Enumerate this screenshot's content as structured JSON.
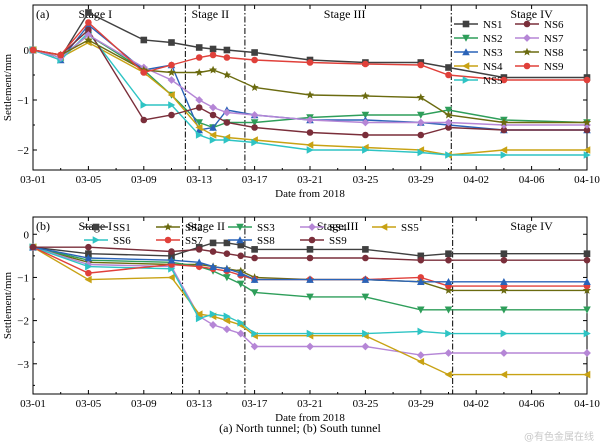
{
  "caption": "(a) North tunnel; (b) South tunnel",
  "watermark": "@有色金属在线",
  "chart_data": [
    {
      "type": "line",
      "panel_label": "(a)",
      "xlabel": "Date from 2018",
      "ylabel": "Settlement/mm",
      "x_ticks": [
        "03-01",
        "03-05",
        "03-09",
        "03-13",
        "03-17",
        "03-21",
        "03-25",
        "03-29",
        "04-02",
        "04-06",
        "04-10"
      ],
      "x_range": [
        0,
        40
      ],
      "ylim": [
        -2.4,
        0.9
      ],
      "y_ticks": [
        0,
        -1,
        -2
      ],
      "stage_lines_x": [
        11,
        15.3,
        30.2
      ],
      "stages": [
        {
          "label": "Stage I",
          "x": 4.5
        },
        {
          "label": "Stage II",
          "x": 12.8
        },
        {
          "label": "Stage III",
          "x": 22.5
        },
        {
          "label": "Stage IV",
          "x": 36
        }
      ],
      "legend_position": "top-right",
      "legend_cols": 2,
      "x": [
        0,
        2,
        4,
        8,
        10,
        12,
        13,
        14,
        16,
        20,
        24,
        28,
        30,
        34,
        40
      ],
      "series": [
        {
          "name": "NS1",
          "color": "#404040",
          "marker": "square",
          "values": [
            0,
            -0.15,
            0.75,
            0.2,
            0.15,
            0.05,
            0.02,
            0,
            -0.05,
            -0.2,
            -0.25,
            -0.25,
            -0.35,
            -0.55,
            -0.55
          ]
        },
        {
          "name": "NS2",
          "color": "#2e9e5a",
          "marker": "tri-down",
          "values": [
            0,
            -0.15,
            0.3,
            -0.4,
            -0.9,
            -1.45,
            -1.55,
            -1.45,
            -1.45,
            -1.35,
            -1.3,
            -1.3,
            -1.2,
            -1.4,
            -1.45
          ]
        },
        {
          "name": "NS3",
          "color": "#2a63b8",
          "marker": "tri-up",
          "values": [
            0,
            -0.2,
            0.5,
            -0.4,
            -0.3,
            -1.6,
            -1.55,
            -1.2,
            -1.3,
            -1.4,
            -1.4,
            -1.45,
            -1.5,
            -1.6,
            -1.6
          ]
        },
        {
          "name": "NS4",
          "color": "#c8a214",
          "marker": "tri-left",
          "values": [
            0,
            -0.15,
            0.15,
            -0.45,
            -0.9,
            -1.55,
            -1.7,
            -1.75,
            -1.8,
            -1.9,
            -1.95,
            -2.0,
            -2.1,
            -2.0,
            -2.0
          ]
        },
        {
          "name": "NS5",
          "color": "#2ec4c4",
          "marker": "tri-right",
          "values": [
            0,
            -0.2,
            0.35,
            -1.1,
            -1.1,
            -1.7,
            -1.8,
            -1.8,
            -1.85,
            -2.0,
            -2.0,
            -2.05,
            -2.1,
            -2.1,
            -2.1
          ]
        },
        {
          "name": "NS6",
          "color": "#7a2e3a",
          "marker": "circle",
          "values": [
            0,
            -0.1,
            0.4,
            -1.4,
            -1.3,
            -1.15,
            -1.3,
            -1.45,
            -1.55,
            -1.65,
            -1.7,
            -1.7,
            -1.55,
            -1.6,
            -1.6
          ]
        },
        {
          "name": "NS7",
          "color": "#b586d6",
          "marker": "diamond",
          "values": [
            0,
            -0.15,
            0.3,
            -0.35,
            -0.6,
            -1.0,
            -1.15,
            -1.25,
            -1.3,
            -1.4,
            -1.45,
            -1.45,
            -1.45,
            -1.5,
            -1.5
          ]
        },
        {
          "name": "NS8",
          "color": "#6b6b10",
          "marker": "star",
          "values": [
            0,
            -0.1,
            0.2,
            -0.4,
            -0.45,
            -0.45,
            -0.4,
            -0.5,
            -0.75,
            -0.9,
            -0.92,
            -0.95,
            -1.3,
            -1.45,
            -1.45
          ]
        },
        {
          "name": "NS9",
          "color": "#e0403a",
          "marker": "circle",
          "values": [
            0,
            -0.1,
            0.55,
            -0.45,
            -0.3,
            -0.15,
            -0.1,
            -0.15,
            -0.2,
            -0.25,
            -0.28,
            -0.3,
            -0.5,
            -0.6,
            -0.6
          ]
        }
      ]
    },
    {
      "type": "line",
      "panel_label": "(b)",
      "xlabel": "Date from 2018",
      "ylabel": "Settlement/mm",
      "x_ticks": [
        "03-01",
        "03-05",
        "03-09",
        "03-13",
        "03-17",
        "03-21",
        "03-25",
        "03-29",
        "04-02",
        "04-06",
        "04-10"
      ],
      "x_range": [
        0,
        40
      ],
      "ylim": [
        -3.7,
        0.4
      ],
      "y_ticks": [
        0,
        -1,
        -2,
        -3
      ],
      "stage_lines_x": [
        10.8,
        15.3,
        30.3
      ],
      "stages": [
        {
          "label": "Stage I",
          "x": 4.5
        },
        {
          "label": "Stage II",
          "x": 12.5
        },
        {
          "label": "Stage III",
          "x": 22
        },
        {
          "label": "Stage IV",
          "x": 36
        }
      ],
      "legend_position": "top",
      "legend_cols": 5,
      "x": [
        0,
        4,
        10,
        12,
        13,
        14,
        15,
        16,
        20,
        24,
        28,
        30,
        34,
        40
      ],
      "series": [
        {
          "name": "SS1",
          "color": "#404040",
          "marker": "square",
          "values": [
            -0.3,
            -0.45,
            -0.5,
            -0.3,
            -0.2,
            -0.2,
            -0.25,
            -0.35,
            -0.35,
            -0.35,
            -0.5,
            -0.45,
            -0.45,
            -0.45
          ]
        },
        {
          "name": "SS2",
          "color": "#6b6b10",
          "marker": "star",
          "values": [
            -0.3,
            -0.65,
            -0.7,
            -0.7,
            -0.75,
            -0.8,
            -0.85,
            -1.0,
            -1.05,
            -1.05,
            -1.1,
            -1.3,
            -1.3,
            -1.3
          ]
        },
        {
          "name": "SS3",
          "color": "#2e9e5a",
          "marker": "tri-down",
          "values": [
            -0.3,
            -0.6,
            -0.65,
            -0.75,
            -0.85,
            -1.0,
            -1.15,
            -1.35,
            -1.45,
            -1.45,
            -1.75,
            -1.75,
            -1.75,
            -1.75
          ]
        },
        {
          "name": "SS4",
          "color": "#b586d6",
          "marker": "diamond",
          "values": [
            -0.3,
            -0.7,
            -0.75,
            -1.9,
            -2.1,
            -2.2,
            -2.3,
            -2.6,
            -2.6,
            -2.6,
            -2.8,
            -2.75,
            -2.75,
            -2.75
          ]
        },
        {
          "name": "SS5",
          "color": "#c8a214",
          "marker": "tri-left",
          "values": [
            -0.3,
            -1.05,
            -1.0,
            -1.85,
            -1.9,
            -2.0,
            -2.1,
            -2.35,
            -2.35,
            -2.35,
            -2.95,
            -3.25,
            -3.25,
            -3.25
          ]
        },
        {
          "name": "SS6",
          "color": "#2ec4c4",
          "marker": "tri-right",
          "values": [
            -0.3,
            -0.75,
            -0.8,
            -1.95,
            -1.85,
            -1.9,
            -2.05,
            -2.3,
            -2.3,
            -2.3,
            -2.25,
            -2.3,
            -2.3,
            -2.3
          ]
        },
        {
          "name": "SS7",
          "color": "#e0403a",
          "marker": "circle",
          "values": [
            -0.3,
            -0.9,
            -0.7,
            -0.75,
            -0.8,
            -0.85,
            -0.95,
            -1.05,
            -1.05,
            -1.05,
            -1.0,
            -1.2,
            -1.2,
            -1.2
          ]
        },
        {
          "name": "SS8",
          "color": "#2a63b8",
          "marker": "tri-up",
          "values": [
            -0.3,
            -0.55,
            -0.6,
            -0.65,
            -0.75,
            -0.8,
            -0.9,
            -1.05,
            -1.05,
            -1.05,
            -1.1,
            -1.1,
            -1.1,
            -1.1
          ]
        },
        {
          "name": "SS9",
          "color": "#7a2e3a",
          "marker": "circle",
          "values": [
            -0.3,
            -0.3,
            -0.4,
            -0.35,
            -0.4,
            -0.45,
            -0.5,
            -0.55,
            -0.55,
            -0.55,
            -0.6,
            -0.6,
            -0.6,
            -0.6
          ]
        }
      ]
    }
  ]
}
